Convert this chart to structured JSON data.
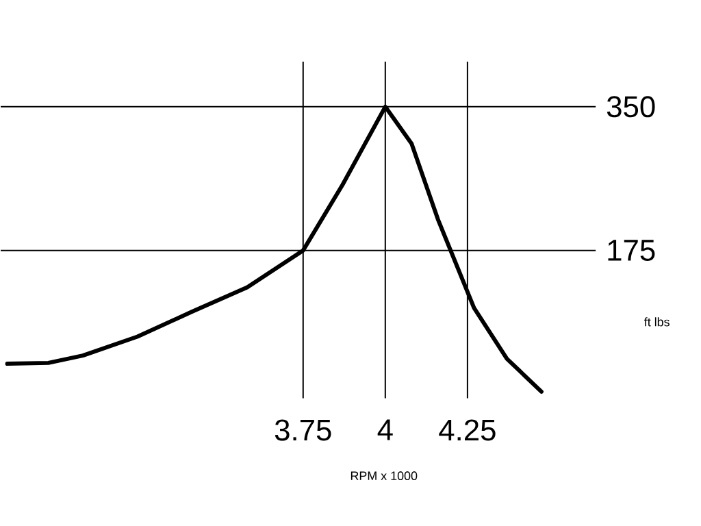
{
  "chart_data": {
    "type": "line",
    "xlabel": "RPM x 1000",
    "ylabel": "ft lbs",
    "x": [
      2.85,
      2.975,
      3.08,
      3.246,
      3.41,
      3.58,
      3.75,
      3.87,
      4.0,
      4.08,
      4.16,
      4.27,
      4.37,
      4.475
    ],
    "values": [
      37,
      38,
      47,
      70,
      100,
      130,
      175,
      255,
      350,
      305,
      213,
      105,
      43,
      3
    ],
    "color": "#000000",
    "xlim": [
      2.83,
      4.64
    ],
    "ylim": [
      -5,
      405
    ],
    "xticks": [
      3.75,
      4,
      4.25
    ],
    "yticks": [
      175,
      350
    ],
    "grid": true
  }
}
